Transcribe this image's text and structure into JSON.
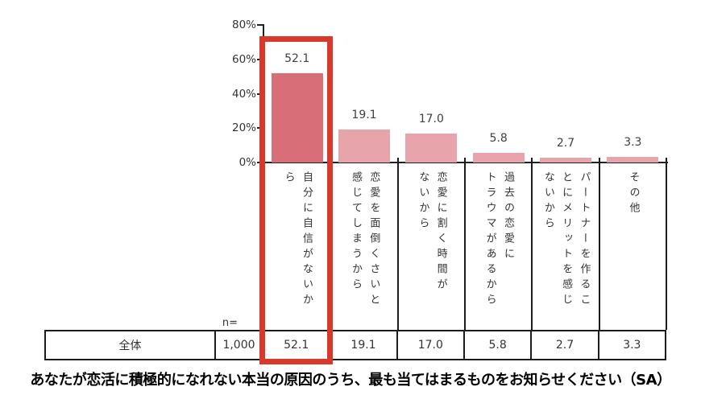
{
  "chart_data": {
    "type": "bar",
    "title": "",
    "categories": [
      "自分に自信がないから",
      "恋愛を面倒くさいと感じてしまうから",
      "恋愛に割く時間がないから",
      "過去の恋愛にトラウマがあるから",
      "パートナーを作ることにメリットを感じないから",
      "その他"
    ],
    "categories_display": [
      "自分に自信がないか\nら",
      "恋愛を面倒くさいと\n感じてしまうから",
      "恋愛に割く時間が\nないから",
      "過去の恋愛に\nトラウマがあるから",
      "パートナーを作るこ\nとにメリットを感じ\nないから",
      "その他"
    ],
    "values": [
      52.1,
      19.1,
      17.0,
      5.8,
      2.7,
      3.3
    ],
    "value_labels": [
      "52.1",
      "19.1",
      "17.0",
      "5.8",
      "2.7",
      "3.3"
    ],
    "y_ticks": [
      {
        "label": "80%",
        "value": 80
      },
      {
        "label": "60%",
        "value": 60
      },
      {
        "label": "40%",
        "value": 40
      },
      {
        "label": "20%",
        "value": 20
      },
      {
        "label": "0%",
        "value": 0
      }
    ],
    "ylim": [
      0,
      80
    ],
    "grid": false,
    "legend": false,
    "highlight_index": 0,
    "colors": {
      "bar_highlight": "#d76e78",
      "bar": "#e8a4ab",
      "highlight_box": "#d9392a",
      "axis": "#1c1c1c"
    }
  },
  "n_label": "n=",
  "table": {
    "row_label": "全体",
    "n_value": "1,000",
    "values": [
      "52.1",
      "19.1",
      "17.0",
      "5.8",
      "2.7",
      "3.3"
    ]
  },
  "caption": "あなたが恋活に積極的になれない本当の原因のうち、最も当てはまるものをお知らせください（SA）"
}
